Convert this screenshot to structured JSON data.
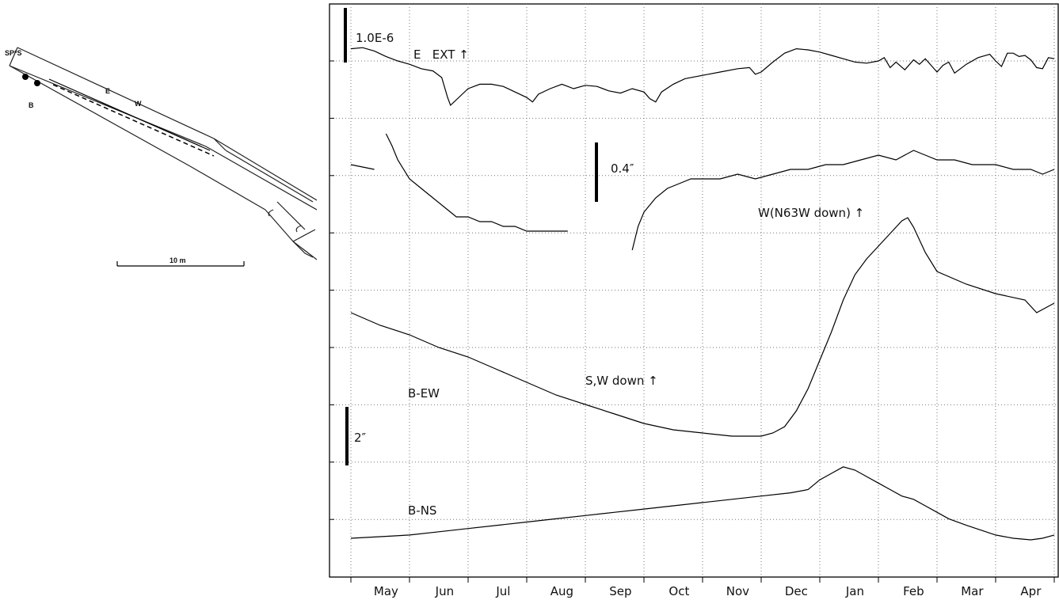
{
  "site_map": {
    "labels": {
      "sps": "SP*S",
      "b": "B",
      "e": "E",
      "w": "W",
      "scale": "10 m"
    }
  },
  "chart_data": {
    "type": "line",
    "x": {
      "type": "time",
      "tick_labels": [
        "May",
        "Jun",
        "Jul",
        "Aug",
        "Sep",
        "Oct",
        "Nov",
        "Dec",
        "Jan",
        "Feb",
        "Mar",
        "Apr"
      ],
      "grid": true,
      "range_months": [
        0,
        12
      ]
    },
    "y": {
      "grid": true,
      "gridline_count": 9,
      "tick_labels": []
    },
    "scale_bars": [
      {
        "label": "1.0E-6",
        "applies_to": "E"
      },
      {
        "label": "0.4″",
        "applies_to": "W"
      },
      {
        "label": "2″",
        "applies_to": "B"
      }
    ],
    "annotations": [
      "E   EXT ↑",
      "W(N63W down) ↑",
      "S,W down ↑"
    ],
    "series": [
      {
        "name": "E",
        "x": [
          0,
          0.2,
          0.4,
          0.6,
          0.8,
          1,
          1.2,
          1.4,
          1.55,
          1.65,
          1.7,
          1.8,
          2,
          2.2,
          2.4,
          2.6,
          2.8,
          3,
          3.1,
          3.2,
          3.4,
          3.6,
          3.7,
          3.8,
          4,
          4.2,
          4.4,
          4.6,
          4.8,
          5,
          5.1,
          5.2,
          5.3,
          5.5,
          5.7,
          6,
          6.3,
          6.6,
          6.8,
          6.9,
          7,
          7.2,
          7.4,
          7.6,
          7.8,
          8,
          8.2,
          8.4,
          8.6,
          8.8,
          9,
          9.1,
          9.2,
          9.3,
          9.45,
          9.6,
          9.7,
          9.8,
          10,
          10.1,
          10.2,
          10.3,
          10.5,
          10.7,
          10.9,
          11,
          11.1,
          11.2,
          11.3,
          11.4,
          11.5,
          11.6,
          11.7,
          11.8,
          11.9,
          12
        ],
        "y": [
          66,
          67,
          64,
          59,
          55,
          52,
          48,
          46,
          40,
          22,
          15,
          20,
          30,
          34,
          34,
          32,
          27,
          22,
          18,
          25,
          30,
          34,
          32,
          30,
          33,
          32,
          28,
          26,
          30,
          27,
          21,
          18,
          27,
          34,
          39,
          42,
          45,
          48,
          49,
          43,
          45,
          54,
          62,
          66,
          65,
          63,
          60,
          57,
          54,
          53,
          55,
          58,
          49,
          54,
          47,
          56,
          52,
          57,
          45,
          51,
          54,
          44,
          52,
          58,
          61,
          55,
          50,
          62,
          62,
          59,
          60,
          56,
          49,
          48,
          58,
          57
        ]
      },
      {
        "name": "W(N63W down)",
        "segments": [
          {
            "x": [
              0,
              0.4
            ],
            "y": [
              0,
              -1
            ]
          },
          {
            "x": [
              0.6,
              0.7,
              0.8,
              1,
              1.2,
              1.4,
              1.6,
              1.8,
              2.0,
              2.2,
              2.4,
              2.6,
              2.8,
              3.0,
              3.2,
              3.4,
              3.7
            ],
            "y": [
              6.5,
              4,
              1,
              -3,
              -5,
              -7,
              -9,
              -11,
              -11,
              -12,
              -12,
              -13,
              -13,
              -14,
              -14,
              -14,
              -14
            ]
          },
          {
            "x": [
              4.8,
              4.9,
              5.0,
              5.2,
              5.4,
              5.6,
              5.8,
              6.0,
              6.3,
              6.6,
              6.9,
              7.2,
              7.5,
              7.8,
              8.1,
              8.4,
              8.7,
              9.0,
              9.3,
              9.6,
              9.8,
              10.0,
              10.3,
              10.6,
              10.8,
              11.0,
              11.3,
              11.6,
              11.8,
              12.0
            ],
            "y": [
              -18,
              -13,
              -10,
              -7,
              -5,
              -4,
              -3,
              -3,
              -3,
              -2,
              -3,
              -2,
              -1,
              -1,
              0,
              0,
              1,
              2,
              1,
              3,
              2,
              1,
              1,
              0,
              0,
              0,
              -1,
              -1,
              -2,
              -1
            ]
          }
        ]
      },
      {
        "name": "B-EW",
        "x": [
          0,
          0.5,
          1,
          1.5,
          2,
          2.5,
          3,
          3.5,
          4,
          4.5,
          5,
          5.5,
          6,
          6.5,
          7,
          7.2,
          7.4,
          7.6,
          7.8,
          8,
          8.2,
          8.4,
          8.6,
          8.8,
          9,
          9.2,
          9.4,
          9.5,
          9.6,
          9.8,
          10,
          10.5,
          11,
          11.5,
          11.7,
          12
        ],
        "y": [
          4.2,
          3.8,
          3.5,
          3.1,
          2.8,
          2.4,
          2.0,
          1.6,
          1.3,
          1.0,
          0.7,
          0.5,
          0.4,
          0.3,
          0.3,
          0.4,
          0.6,
          1.1,
          1.8,
          2.7,
          3.6,
          4.6,
          5.4,
          5.9,
          6.3,
          6.7,
          7.1,
          7.2,
          6.9,
          6.1,
          5.5,
          5.1,
          4.8,
          4.6,
          4.2,
          4.5
        ]
      },
      {
        "name": "B-NS",
        "x": [
          0,
          0.5,
          1,
          1.5,
          2,
          2.5,
          3,
          3.5,
          4,
          4.5,
          5,
          5.5,
          6,
          6.5,
          7,
          7.5,
          7.8,
          8,
          8.2,
          8.4,
          8.6,
          8.8,
          9,
          9.2,
          9.4,
          9.6,
          9.8,
          10,
          10.2,
          10.5,
          11,
          11.3,
          11.6,
          11.8,
          12
        ],
        "y": [
          0,
          0.05,
          0.1,
          0.2,
          0.3,
          0.4,
          0.5,
          0.6,
          0.7,
          0.8,
          0.9,
          1.0,
          1.1,
          1.2,
          1.3,
          1.4,
          1.5,
          1.8,
          2.0,
          2.2,
          2.1,
          1.9,
          1.7,
          1.5,
          1.3,
          1.2,
          1.0,
          0.8,
          0.6,
          0.4,
          0.1,
          0.0,
          -0.05,
          0.0,
          0.1
        ]
      }
    ]
  }
}
